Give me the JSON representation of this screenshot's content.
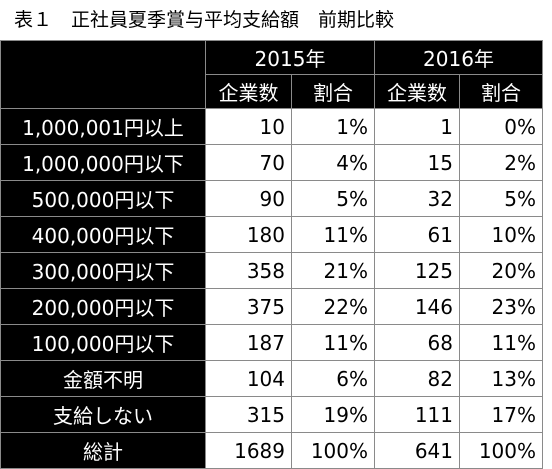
{
  "title": "表１　正社員夏季賞与平均支給額　前期比較",
  "years": [
    "2015年",
    "2016年"
  ],
  "subheaders": [
    "企業数",
    "割合",
    "企業数",
    "割合"
  ],
  "rows": [
    {
      "label": "1,000,001円以上",
      "c2015": "10",
      "p2015": "1%",
      "c2016": "1",
      "p2016": "0%"
    },
    {
      "label": "1,000,000円以下",
      "c2015": "70",
      "p2015": "4%",
      "c2016": "15",
      "p2016": "2%"
    },
    {
      "label": "500,000円以下",
      "c2015": "90",
      "p2015": "5%",
      "c2016": "32",
      "p2016": "5%"
    },
    {
      "label": "400,000円以下",
      "c2015": "180",
      "p2015": "11%",
      "c2016": "61",
      "p2016": "10%"
    },
    {
      "label": "300,000円以下",
      "c2015": "358",
      "p2015": "21%",
      "c2016": "125",
      "p2016": "20%"
    },
    {
      "label": "200,000円以下",
      "c2015": "375",
      "p2015": "22%",
      "c2016": "146",
      "p2016": "23%"
    },
    {
      "label": "100,000円以下",
      "c2015": "187",
      "p2015": "11%",
      "c2016": "68",
      "p2016": "11%"
    },
    {
      "label": "金額不明",
      "c2015": "104",
      "p2015": "6%",
      "c2016": "82",
      "p2016": "13%"
    },
    {
      "label": "支給しない",
      "c2015": "315",
      "p2015": "19%",
      "c2016": "111",
      "p2016": "17%"
    },
    {
      "label": "総計",
      "c2015": "1689",
      "p2015": "100%",
      "c2016": "641",
      "p2016": "100%"
    }
  ]
}
